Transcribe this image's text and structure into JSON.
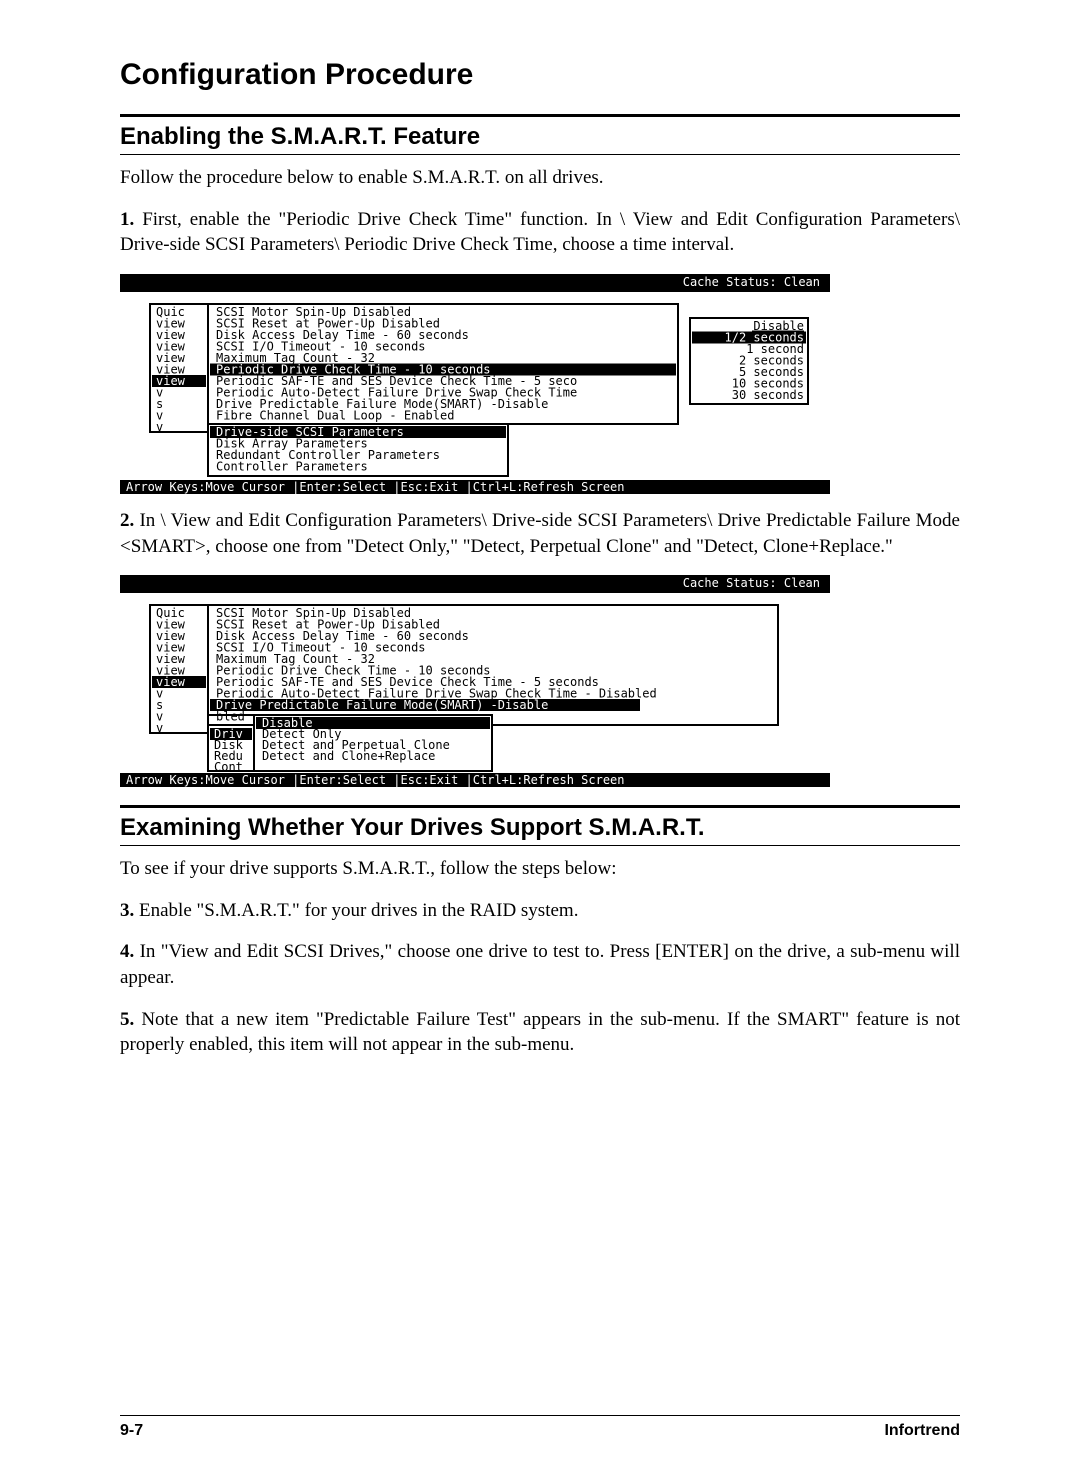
{
  "page_title": "Configuration Procedure",
  "section1_title": "Enabling the S.M.A.R.T. Feature",
  "p_intro": "Follow the procedure below to enable S.M.A.R.T. on all drives.",
  "step1_num": "1.",
  "step1_text": "  First, enable the \"Periodic Drive Check Time\" function.  In \\ View  and  Edit  Configuration  Parameters\\ Drive-side  SCSI Parameters\\ Periodic Drive Check Time, choose a time interval.",
  "step2_num": "2.",
  "step2_text": "  In \\ View and Edit Configuration Parameters\\ Drive-side SCSI Parameters\\ Drive Predictable Failure Mode <SMART>, choose one from  \"Detect  Only,\"  \"Detect,  Perpetual  Clone\"  and  \"Detect, Clone+Replace.\"",
  "section2_title": "Examining Whether Your Drives Support S.M.A.R.T.",
  "p_see": "To see if your drive supports S.M.A.R.T., follow the steps below:",
  "step3_num": "3.",
  "step3_text": "  Enable \"S.M.A.R.T.\" for your drives in the RAID system.",
  "step4_num": "4.",
  "step4_text": "  In \"View and Edit SCSI Drives,\" choose one drive to test to. Press [ENTER] on the drive, a sub-menu will appear.",
  "step5_num": "5.",
  "step5_text": "  Note that a new item \"Predictable Failure Test\" appears in the sub-menu.  If the SMART\" feature is not properly enabled, this item will not appear in the sub-menu.",
  "footer_left": "9-7",
  "footer_right": "Infortrend",
  "s1": {
    "cache": "Cache Status: Clean",
    "left": [
      "Quic",
      "view",
      "view",
      "view",
      "view",
      "view",
      "view",
      "v",
      "s",
      "v",
      "v"
    ],
    "lines": [
      "SCSI Motor Spin-Up Disabled",
      "SCSI Reset at Power-Up Disabled",
      "Disk Access Delay Time - 60 seconds",
      "SCSI I/O Timeout - 10 seconds",
      "Maximum Tag Count - 32",
      "Periodic Drive Check Time -    10 seconds",
      "Periodic SAF-TE and SES Device Check Time -  5 seco",
      "Periodic Auto-Detect Failure Drive Swap Check Time",
      "Drive Predictable Failure Mode(SMART) -Disable",
      "Fibre Channel Dual Loop - Enabled"
    ],
    "menu2": [
      "Drive-side SCSI Parameters",
      "Disk Array Parameters",
      "Redundant Controller Parameters",
      "Controller Parameters"
    ],
    "popup": [
      "Disable",
      "1/2 seconds",
      "1 second",
      "2 seconds",
      "5 seconds",
      "10 seconds",
      "30 seconds"
    ],
    "statusbar": "Arrow Keys:Move Cursor   |Enter:Select   |Esc:Exit   |Ctrl+L:Refresh Screen"
  },
  "s2": {
    "cache": "Cache Status: Clean",
    "left": [
      "Quic",
      "view",
      "view",
      "view",
      "view",
      "view",
      "view",
      "v",
      "s",
      "v",
      "v"
    ],
    "lines": [
      "SCSI Motor Spin-Up Disabled",
      "SCSI Reset at Power-Up Disabled",
      "Disk Access Delay Time - 60 seconds",
      "SCSI I/O Timeout - 10 seconds",
      "Maximum Tag Count - 32",
      "Periodic Drive Check Time -    10 seconds",
      "Periodic SAF-TE and SES Device Check Time -  5 seconds",
      "Periodic Auto-Detect Failure Drive Swap Check Time - Disabled",
      "Drive Predictable Failure Mode(SMART) -Disable",
      "                              bled"
    ],
    "menu2": [
      "Disable",
      "Detect Only",
      "Detect and Perpetual Clone",
      "Detect and Clone+Replace"
    ],
    "menu2left": [
      "",
      "Driv",
      "Disk",
      "Redu",
      "Cont"
    ],
    "statusbar": "Arrow Keys:Move Cursor   |Enter:Select   |Esc:Exit   |Ctrl+L:Refresh Screen"
  }
}
